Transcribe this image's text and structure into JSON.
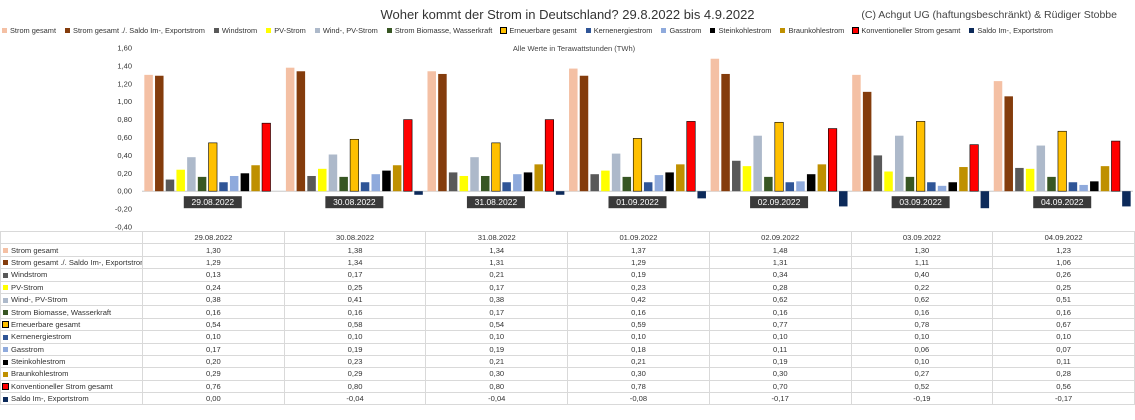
{
  "title": "Woher kommt der Strom in Deutschland? 29.8.2022 bis 4.9.2022",
  "credit": "(C) Achgut UG (haftungsbeschränkt) & Rüdiger Stobbe",
  "chart_data": {
    "type": "bar",
    "subtitle": "Alle Werte in Terawattstunden (TWh)",
    "categories": [
      "29.08.2022",
      "30.08.2022",
      "31.08.2022",
      "01.09.2022",
      "02.09.2022",
      "03.09.2022",
      "04.09.2022"
    ],
    "ylim": [
      -0.4,
      1.6
    ],
    "yticks": [
      "1,60",
      "1,40",
      "1,20",
      "1,00",
      "0,80",
      "0,60",
      "0,40",
      "0,20",
      "0,00",
      "-0,20",
      "-0,40"
    ],
    "grid": false,
    "legend_position": "top",
    "series": [
      {
        "name": "Strom gesamt",
        "color": "#f4c0a4",
        "values": [
          1.3,
          1.38,
          1.34,
          1.37,
          1.48,
          1.3,
          1.23
        ],
        "labels": [
          "1,30",
          "1,38",
          "1,34",
          "1,37",
          "1,48",
          "1,30",
          "1,23"
        ]
      },
      {
        "name": "Strom gesamt ./. Saldo Im-, Exportstrom",
        "color": "#843c0c",
        "values": [
          1.29,
          1.34,
          1.31,
          1.29,
          1.31,
          1.11,
          1.06
        ],
        "labels": [
          "1,29",
          "1,34",
          "1,31",
          "1,29",
          "1,31",
          "1,11",
          "1,06"
        ]
      },
      {
        "name": "Windstrom",
        "color": "#595959",
        "values": [
          0.13,
          0.17,
          0.21,
          0.19,
          0.34,
          0.4,
          0.26
        ],
        "labels": [
          "0,13",
          "0,17",
          "0,21",
          "0,19",
          "0,34",
          "0,40",
          "0,26"
        ]
      },
      {
        "name": "PV-Strom",
        "color": "#ffff00",
        "values": [
          0.24,
          0.25,
          0.17,
          0.23,
          0.28,
          0.22,
          0.25
        ],
        "labels": [
          "0,24",
          "0,25",
          "0,17",
          "0,23",
          "0,28",
          "0,22",
          "0,25"
        ]
      },
      {
        "name": "Wind-, PV-Strom",
        "color": "#adb9ca",
        "values": [
          0.38,
          0.41,
          0.38,
          0.42,
          0.62,
          0.62,
          0.51
        ],
        "labels": [
          "0,38",
          "0,41",
          "0,38",
          "0,42",
          "0,62",
          "0,62",
          "0,51"
        ]
      },
      {
        "name": "Strom Biomasse, Wasserkraft",
        "color": "#375623",
        "values": [
          0.16,
          0.16,
          0.17,
          0.16,
          0.16,
          0.16,
          0.16
        ],
        "labels": [
          "0,16",
          "0,16",
          "0,17",
          "0,16",
          "0,16",
          "0,16",
          "0,16"
        ]
      },
      {
        "name": "Erneuerbare gesamt",
        "color": "#ffc000",
        "border": "#000000",
        "values": [
          0.54,
          0.58,
          0.54,
          0.59,
          0.77,
          0.78,
          0.67
        ],
        "labels": [
          "0,54",
          "0,58",
          "0,54",
          "0,59",
          "0,77",
          "0,78",
          "0,67"
        ]
      },
      {
        "name": "Kernenergiestrom",
        "color": "#2f5597",
        "values": [
          0.1,
          0.1,
          0.1,
          0.1,
          0.1,
          0.1,
          0.1
        ],
        "labels": [
          "0,10",
          "0,10",
          "0,10",
          "0,10",
          "0,10",
          "0,10",
          "0,10"
        ]
      },
      {
        "name": "Gasstrom",
        "color": "#8faadc",
        "values": [
          0.17,
          0.19,
          0.19,
          0.18,
          0.11,
          0.06,
          0.07
        ],
        "labels": [
          "0,17",
          "0,19",
          "0,19",
          "0,18",
          "0,11",
          "0,06",
          "0,07"
        ]
      },
      {
        "name": "Steinkohlestrom",
        "color": "#000000",
        "values": [
          0.2,
          0.23,
          0.21,
          0.21,
          0.19,
          0.1,
          0.11
        ],
        "labels": [
          "0,20",
          "0,23",
          "0,21",
          "0,21",
          "0,19",
          "0,10",
          "0,11"
        ]
      },
      {
        "name": "Braunkohlestrom",
        "color": "#bf9000",
        "values": [
          0.29,
          0.29,
          0.3,
          0.3,
          0.3,
          0.27,
          0.28
        ],
        "labels": [
          "0,29",
          "0,29",
          "0,30",
          "0,30",
          "0,30",
          "0,27",
          "0,28"
        ]
      },
      {
        "name": "Konventioneller Strom gesamt",
        "color": "#ff0000",
        "border": "#000000",
        "values": [
          0.76,
          0.8,
          0.8,
          0.78,
          0.7,
          0.52,
          0.56
        ],
        "labels": [
          "0,76",
          "0,80",
          "0,80",
          "0,78",
          "0,70",
          "0,52",
          "0,56"
        ]
      },
      {
        "name": "Saldo Im-, Exportstrom",
        "color": "#0c2a5a",
        "values": [
          0.0,
          -0.04,
          -0.04,
          -0.08,
          -0.17,
          -0.19,
          -0.17
        ],
        "labels": [
          "0,00",
          "-0,04",
          "-0,04",
          "-0,08",
          "-0,17",
          "-0,19",
          "-0,17"
        ]
      }
    ]
  }
}
